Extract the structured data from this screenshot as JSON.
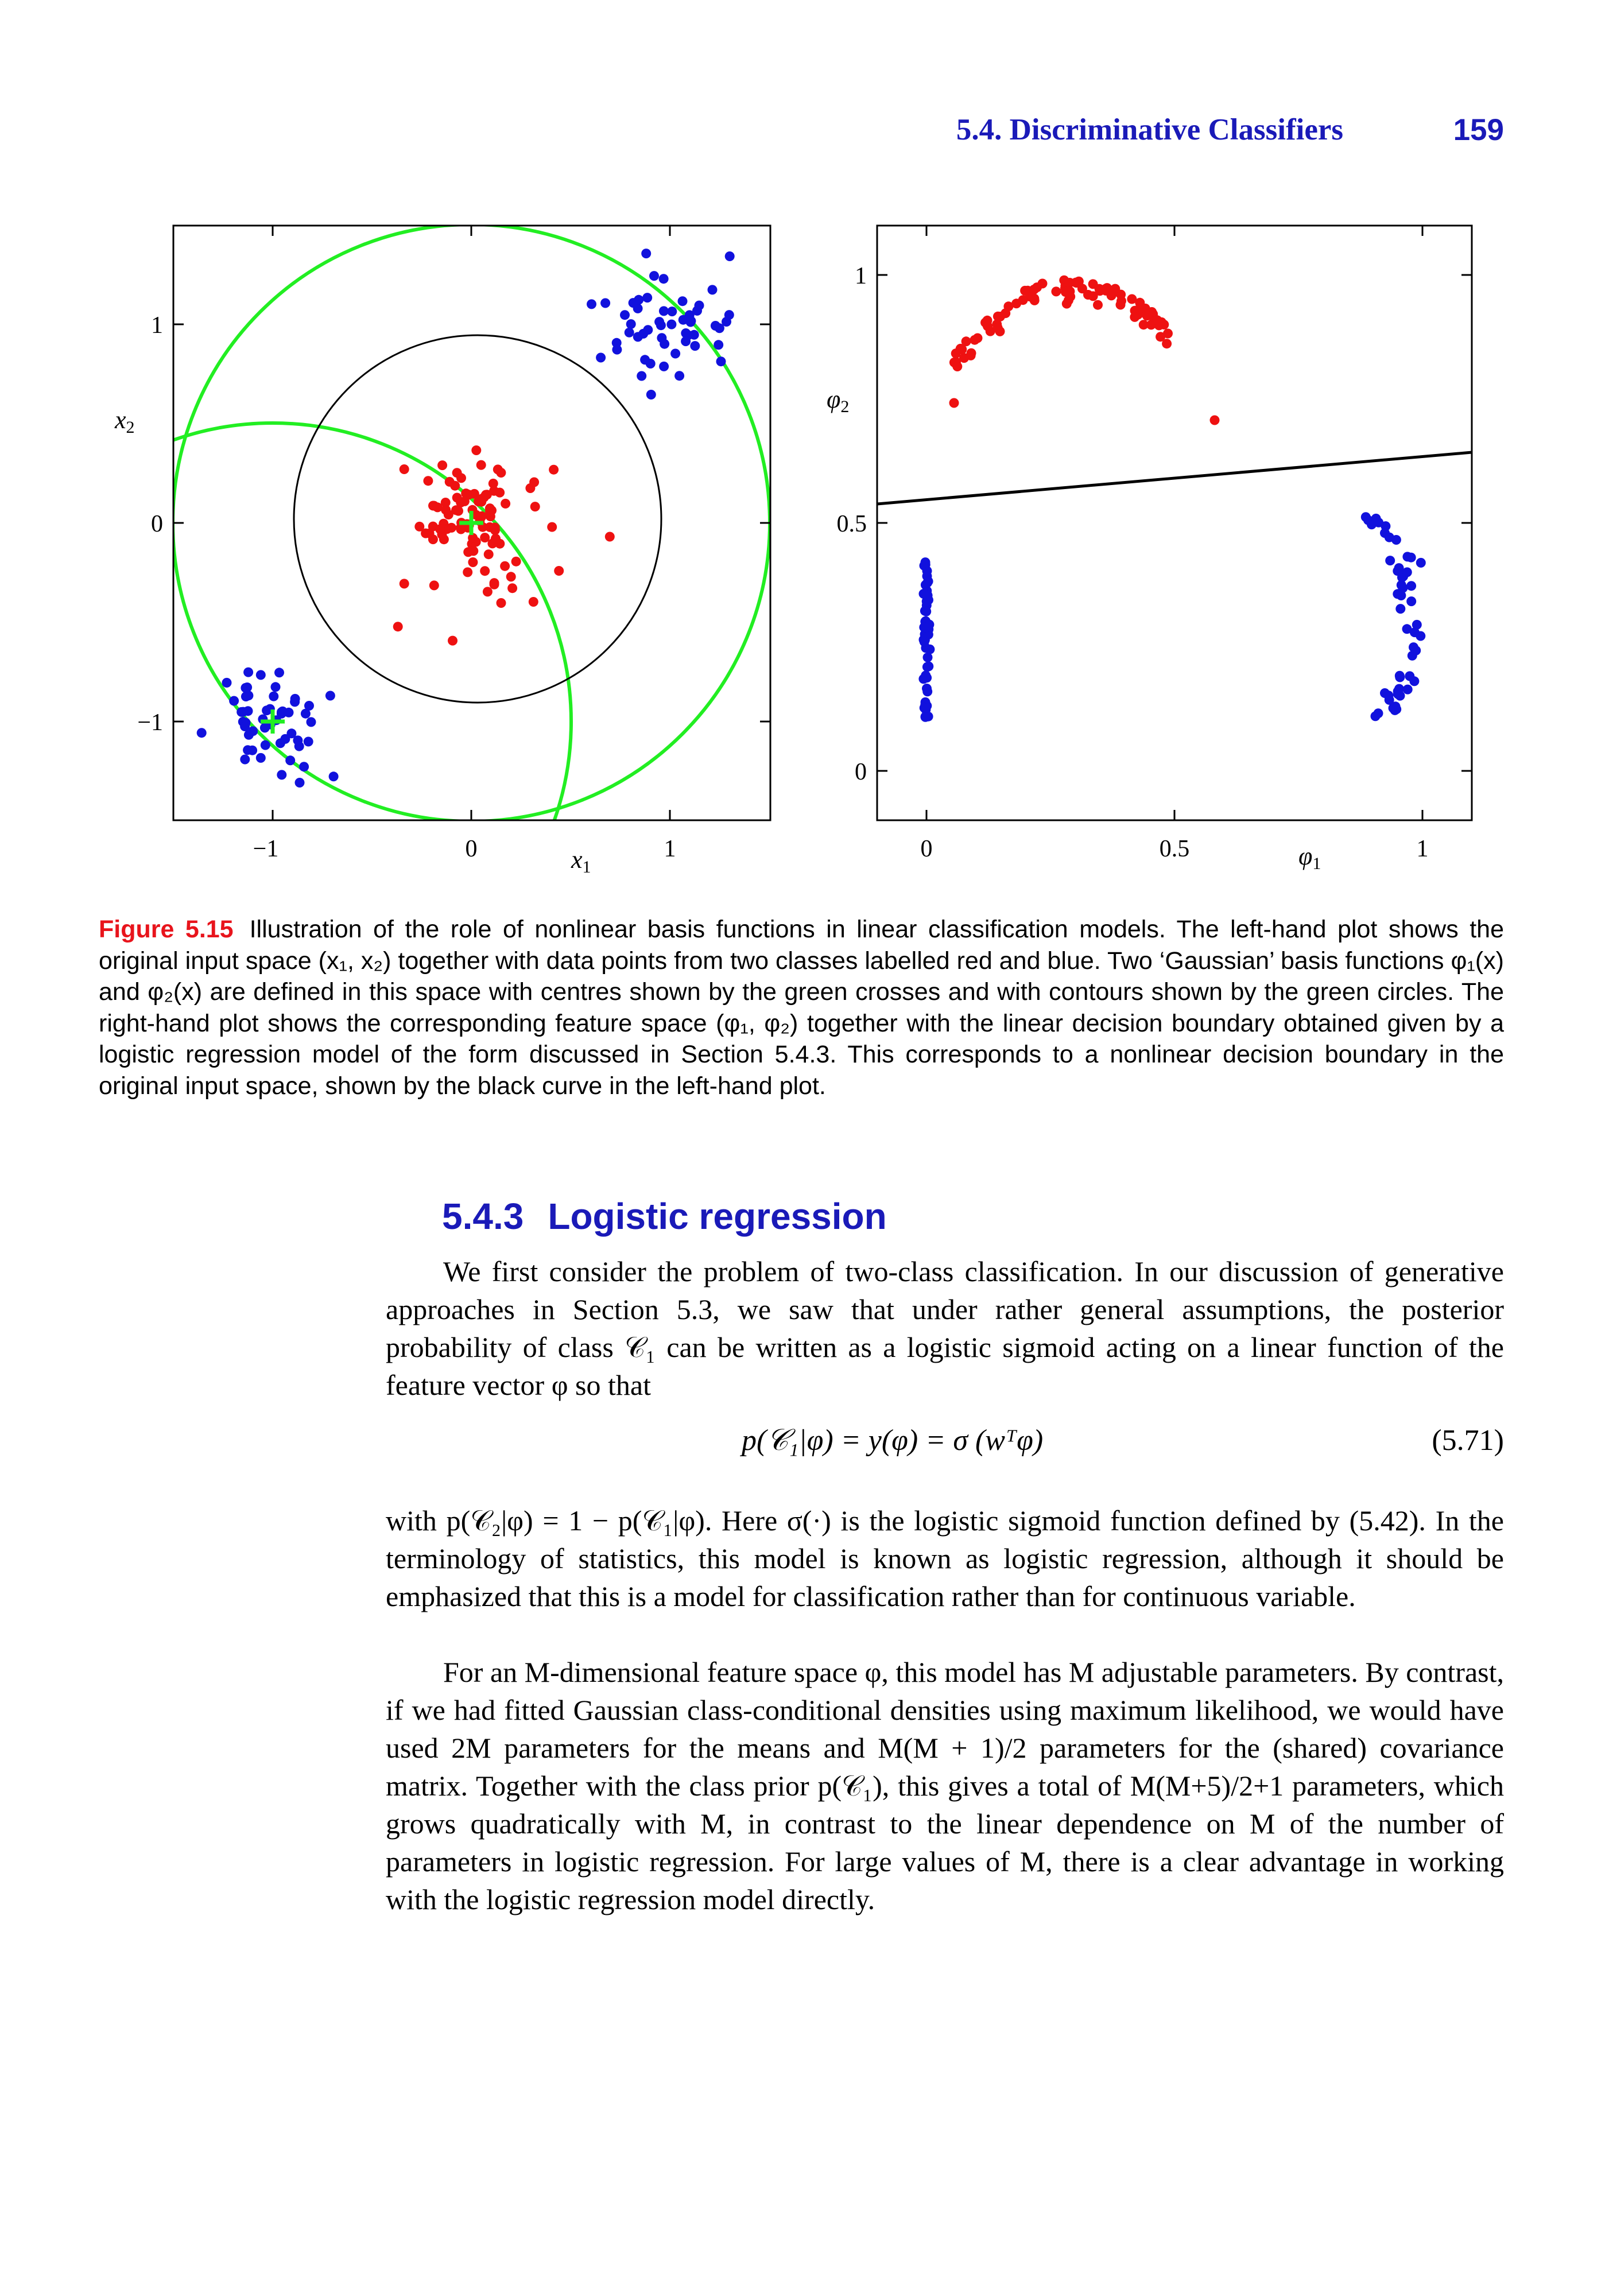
{
  "header": {
    "section_title": "5.4. Discriminative Classifiers",
    "page_number": "159"
  },
  "figure": {
    "left_plot": {
      "xlabel_sym": "x",
      "xlabel_sub": "1",
      "ylabel_sym": "x",
      "ylabel_sub": "2",
      "xticks": [
        "−1",
        "0",
        "1"
      ],
      "yticks": [
        "1",
        "0",
        "−1"
      ]
    },
    "right_plot": {
      "xlabel_sym": "φ",
      "xlabel_sub": "1",
      "ylabel_sym": "φ",
      "ylabel_sub": "2",
      "xticks": [
        "0",
        "0.5",
        "1"
      ],
      "yticks": [
        "1",
        "0.5",
        "0"
      ]
    },
    "colors": {
      "red_class": "#ee1111",
      "blue_class": "#1111dd",
      "basis_contours": "#22ee22",
      "boundary": "#000000"
    }
  },
  "caption": {
    "label": "Figure 5.15",
    "text": "Illustration of the role of nonlinear basis functions in linear classification models. The left-hand plot shows the original input space (x₁, x₂) together with data points from two classes labelled red and blue. Two ‘Gaussian’ basis functions φ₁(x) and φ₂(x) are defined in this space with centres shown by the green crosses and with contours shown by the green circles. The right-hand plot shows the corresponding feature space (φ₁, φ₂) together with the linear decision boundary obtained given by a logistic regression model of the form discussed in Section 5.4.3. This corresponds to a nonlinear decision boundary in the original input space, shown by the black curve in the left-hand plot."
  },
  "section": {
    "number": "5.4.3",
    "title": "Logistic regression"
  },
  "paragraphs": {
    "p1": "We first consider the problem of two-class classification. In our discussion of generative approaches in Section 5.3, we saw that under rather general assumptions, the posterior probability of class 𝒞₁ can be written as a logistic sigmoid acting on a linear function of the feature vector φ so that",
    "equation": "p(𝒞₁|φ) = y(φ) = σ (wᵀφ)",
    "equation_number": "(5.71)",
    "p2": "with p(𝒞₂|φ) = 1 − p(𝒞₁|φ). Here σ(·) is the logistic sigmoid function defined by (5.42). In the terminology of statistics, this model is known as logistic regression, although it should be emphasized that this is a model for classification rather than for continuous variable.",
    "p3": "For an M-dimensional feature space φ, this model has M adjustable parameters. By contrast, if we had fitted Gaussian class-conditional densities using maximum likelihood, we would have used 2M parameters for the means and M(M + 1)/2 parameters for the (shared) covariance matrix. Together with the class prior p(𝒞₁), this gives a total of M(M+5)/2+1 parameters, which grows quadratically with M, in contrast to the linear dependence on M of the number of parameters in logistic regression. For large values of M, there is a clear advantage in working with the logistic regression model directly."
  }
}
